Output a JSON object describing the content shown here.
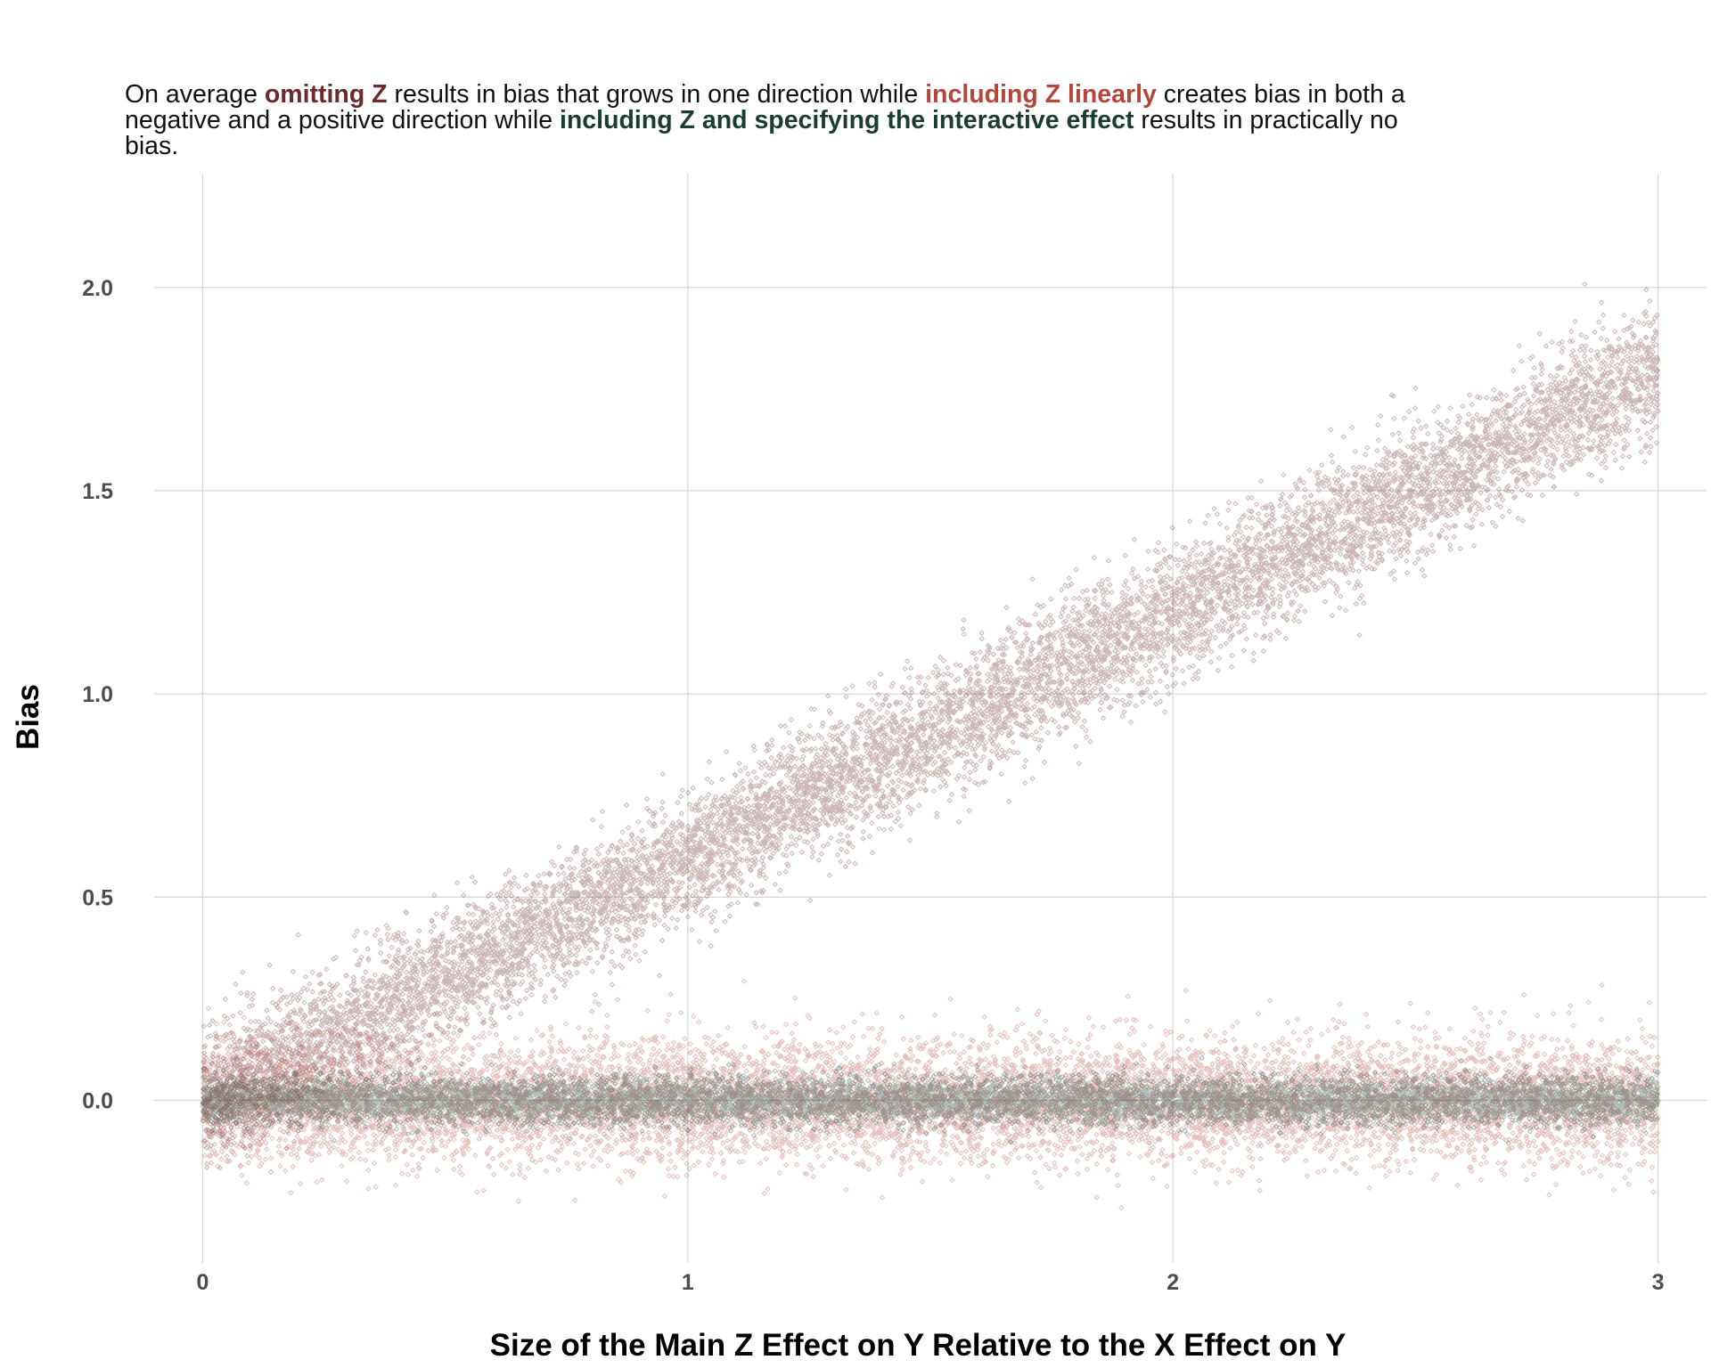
{
  "subtitle": {
    "p1": "On average ",
    "h1": "omitting Z",
    "p2": " results in bias that grows in one direction while ",
    "h2": "including Z linearly",
    "p3": " creates bias in both a negative and a positive direction while ",
    "h3": "including Z and specifying the interactive effect",
    "p4": " results in practically no bias."
  },
  "chart_data": {
    "type": "scatter",
    "xlabel": "Size of the Main Z Effect on Y Relative to the X Effect on Y",
    "ylabel": "Bias",
    "xlim": [
      -0.1,
      3.1
    ],
    "ylim": [
      -0.4,
      2.28
    ],
    "x_ticks": [
      0,
      1,
      2,
      3
    ],
    "x_tick_labels": [
      "0",
      "1",
      "2",
      "3"
    ],
    "y_ticks": [
      0.0,
      0.5,
      1.0,
      1.5,
      2.0
    ],
    "y_tick_labels": [
      "0.0",
      "0.5",
      "1.0",
      "1.5",
      "2.0"
    ],
    "grid": true,
    "legend": "none",
    "marker": "diamond-outline",
    "point_count_per_series": 10000,
    "series": [
      {
        "key": "omitting",
        "color": "#6b2a2c",
        "opacity": 0.35,
        "trend": {
          "slope": 0.6,
          "intercept": 0.0
        },
        "spread_sd": 0.08,
        "x_range": [
          0,
          3
        ],
        "approx_points": [
          [
            0,
            0.0
          ],
          [
            0.5,
            0.3
          ],
          [
            1,
            0.6
          ],
          [
            1.5,
            0.9
          ],
          [
            2,
            1.2
          ],
          [
            2.5,
            1.5
          ],
          [
            3,
            1.8
          ]
        ]
      },
      {
        "key": "linear",
        "color": "#b3473b",
        "opacity": 0.35,
        "trend": {
          "slope": 0.0,
          "intercept": 0.0
        },
        "spread_sd": 0.075,
        "x_range": [
          0,
          3
        ],
        "approx_points": [
          [
            0,
            0.0
          ],
          [
            1,
            0.0
          ],
          [
            2,
            0.0
          ],
          [
            3,
            0.0
          ]
        ]
      },
      {
        "key": "interactive",
        "color": "#1b3d2f",
        "opacity": 0.35,
        "trend": {
          "slope": 0.0,
          "intercept": 0.0
        },
        "spread_sd": 0.028,
        "x_range": [
          0,
          3
        ],
        "approx_points": [
          [
            0,
            0.0
          ],
          [
            1,
            0.0
          ],
          [
            2,
            0.0
          ],
          [
            3,
            0.0
          ]
        ]
      }
    ]
  }
}
